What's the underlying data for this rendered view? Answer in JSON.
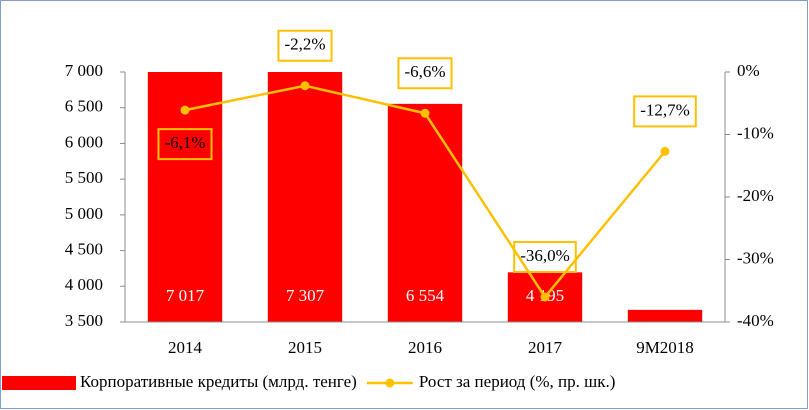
{
  "chart_data": {
    "type": "bar",
    "categories": [
      "2014",
      "2015",
      "2016",
      "2017",
      "9M2018"
    ],
    "series": [
      {
        "name": "Корпоративные кредиты (млрд. тенге)",
        "type": "bar",
        "color": "#ff0000",
        "values": [
          7017,
          7307,
          6554,
          4195,
          3670
        ],
        "value_labels": [
          "7 017",
          "7 307",
          "6 554",
          "4 195",
          null
        ]
      },
      {
        "name": "Рост за период (%, пр. шк.)",
        "type": "line",
        "axis": "y2",
        "color": "#ffc000",
        "values": [
          -6.1,
          -2.2,
          -6.6,
          -36.0,
          -12.7
        ],
        "value_labels": [
          "-6,1%",
          "-2,2%",
          "-6,6%",
          "-36,0%",
          "-12,7%"
        ]
      }
    ],
    "ylim": [
      3500,
      7000
    ],
    "yticks": [
      {
        "value": 3500,
        "label": "3 500"
      },
      {
        "value": 4000,
        "label": "4 000"
      },
      {
        "value": 4500,
        "label": "4 500"
      },
      {
        "value": 5000,
        "label": "5 000"
      },
      {
        "value": 5500,
        "label": "5 500"
      },
      {
        "value": 6000,
        "label": "6 000"
      },
      {
        "value": 6500,
        "label": "6 500"
      },
      {
        "value": 7000,
        "label": "7 000"
      }
    ],
    "y2lim": [
      -40,
      0
    ],
    "y2ticks": [
      {
        "value": -40,
        "label": "-40%"
      },
      {
        "value": -30,
        "label": "-30%"
      },
      {
        "value": -20,
        "label": "-20%"
      },
      {
        "value": -10,
        "label": "-10%"
      },
      {
        "value": 0,
        "label": "0%"
      }
    ],
    "grid": false,
    "legend": "bottom"
  }
}
